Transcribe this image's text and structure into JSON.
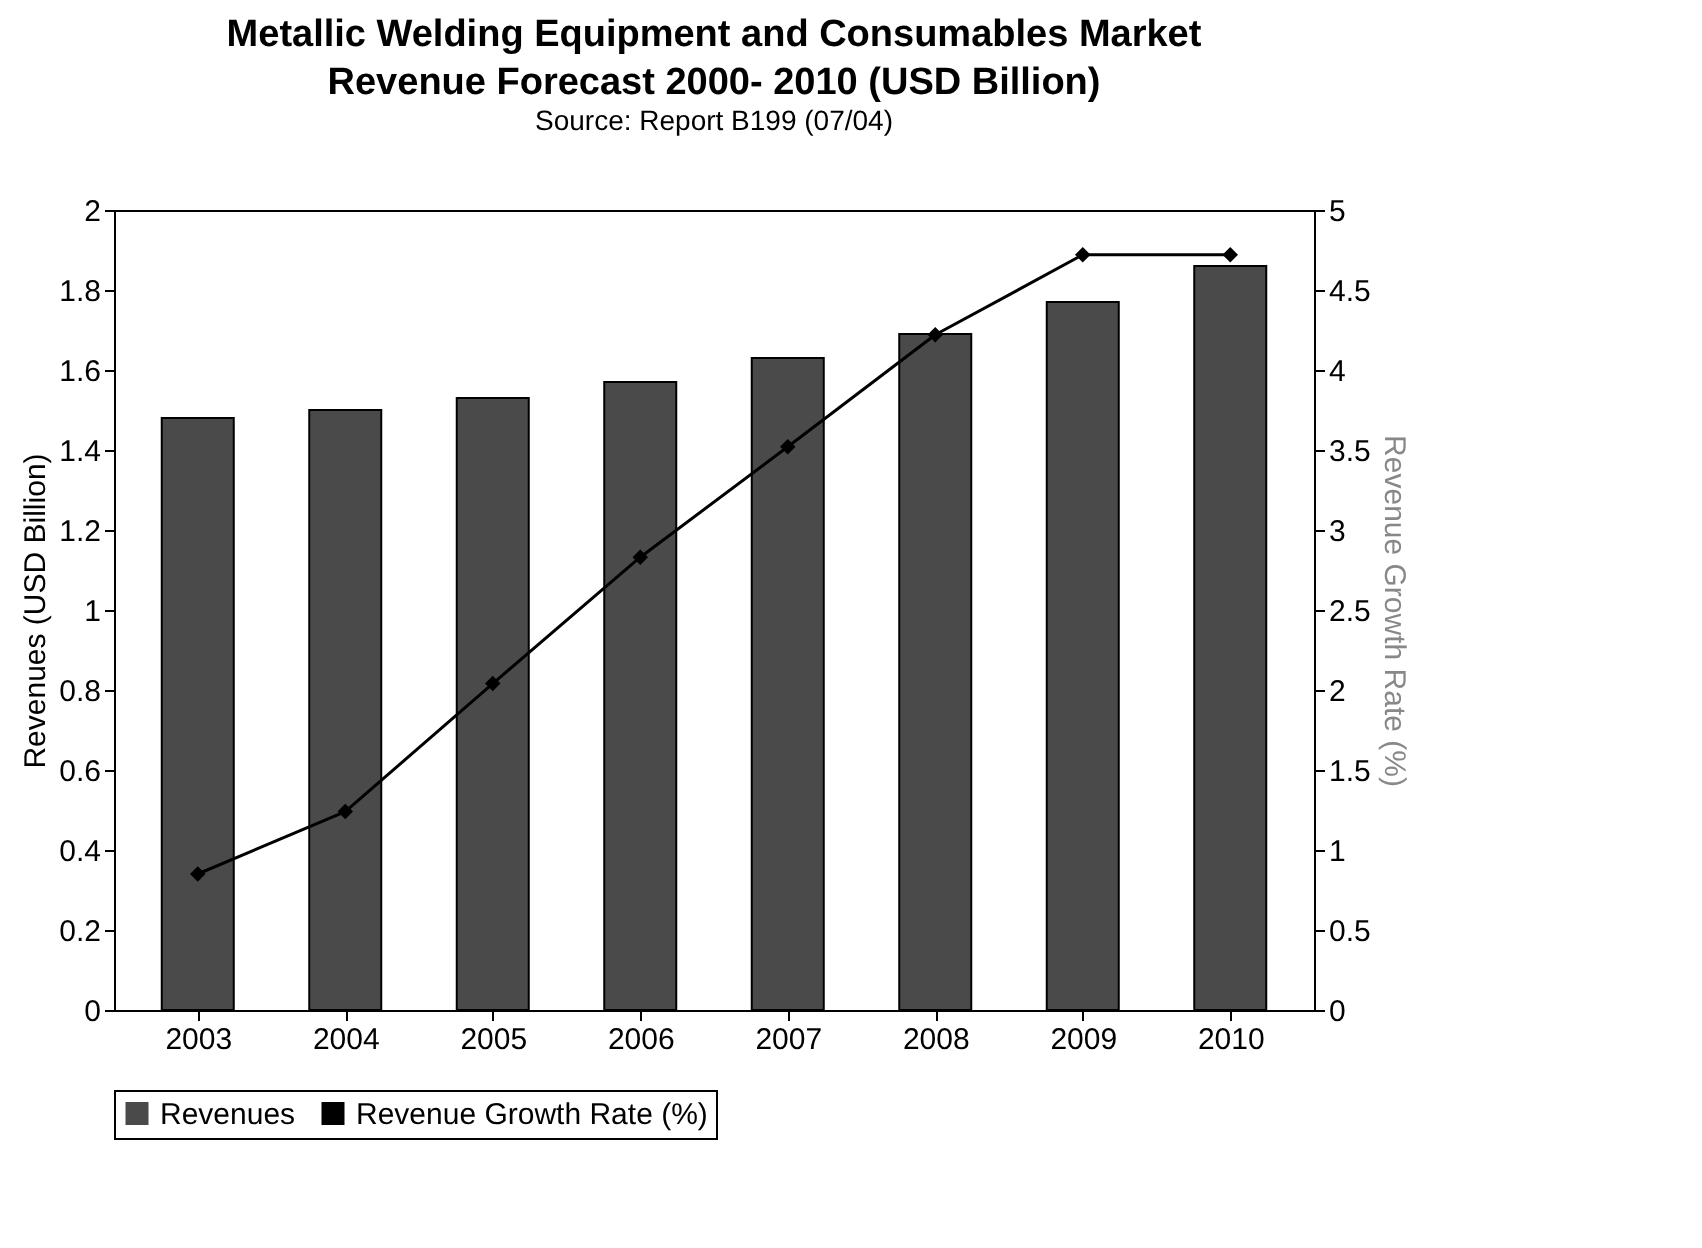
{
  "chart_data": {
    "type": "bar",
    "title": "Metallic Welding Equipment and Consumables Market Revenue Forecast 2000- 2010 (USD Billion)",
    "subtitle": "Source: Report B199 (07/04)",
    "ylabel": "Revenues (USD Billion)",
    "y2label": "Revenue Growth Rate (%)",
    "categories": [
      "2003",
      "2004",
      "2005",
      "2006",
      "2007",
      "2008",
      "2009",
      "2010"
    ],
    "series": [
      {
        "name": "Revenues",
        "color": "#4a4a4a",
        "values": [
          1.48,
          1.5,
          1.53,
          1.57,
          1.63,
          1.69,
          1.77,
          1.86
        ]
      },
      {
        "name": "Revenue Growth Rate (%)",
        "type": "line",
        "axis": "y2",
        "color": "#000000",
        "values": [
          0.85,
          1.24,
          2.04,
          2.83,
          3.52,
          4.22,
          4.72,
          4.72
        ]
      }
    ],
    "ylim": [
      0,
      2
    ],
    "yticks": [
      0,
      0.2,
      0.4,
      0.6,
      0.8,
      1,
      1.2,
      1.4,
      1.6,
      1.8,
      2
    ],
    "y2lim": [
      0,
      5
    ],
    "y2ticks": [
      0,
      0.5,
      1,
      1.5,
      2,
      2.5,
      3,
      3.5,
      4,
      4.5,
      5
    ],
    "legend": "bottom",
    "marker": "diamond",
    "line_style": "solid",
    "grid": false
  }
}
